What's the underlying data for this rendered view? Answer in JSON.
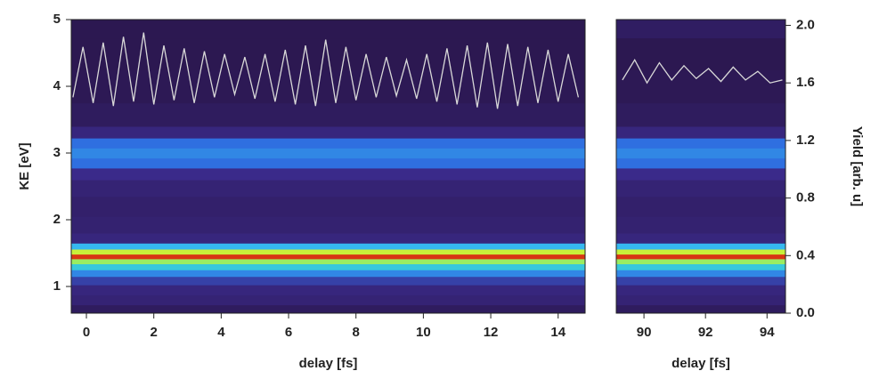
{
  "chart_data": [
    {
      "type": "heatmap",
      "xlabel": "delay [fs]",
      "ylabel": "KE [eV]",
      "xlim": [
        -0.45,
        14.8
      ],
      "xticks": [
        0,
        2,
        4,
        6,
        8,
        10,
        12,
        14
      ],
      "ylim": [
        0.6,
        5
      ],
      "yticks": [
        1,
        2,
        3,
        4,
        5
      ],
      "y2lim": [
        0,
        2.04
      ],
      "heatmap": {
        "ke": [
          0.65,
          0.8,
          0.95,
          1.1,
          1.2,
          1.3,
          1.38,
          1.45,
          1.52,
          1.6,
          1.7,
          1.9,
          2.2,
          2.5,
          2.7,
          2.85,
          3.0,
          3.15,
          3.3,
          3.5,
          4.0,
          4.5,
          4.95
        ],
        "intensity": [
          0.05,
          0.1,
          0.12,
          0.2,
          0.35,
          0.5,
          0.7,
          0.98,
          0.75,
          0.45,
          0.12,
          0.09,
          0.08,
          0.1,
          0.15,
          0.3,
          0.35,
          0.3,
          0.12,
          0.05,
          0.03,
          0.02,
          0.02
        ]
      },
      "series": [
        {
          "color": "#d8d8d8",
          "axis": "y2",
          "x": [
            -0.4,
            -0.1,
            0.2,
            0.5,
            0.8,
            1.1,
            1.4,
            1.7,
            2.0,
            2.3,
            2.6,
            2.9,
            3.2,
            3.5,
            3.8,
            4.1,
            4.4,
            4.7,
            5.0,
            5.3,
            5.6,
            5.9,
            6.2,
            6.5,
            6.8,
            7.1,
            7.4,
            7.7,
            8.0,
            8.3,
            8.6,
            8.9,
            9.2,
            9.5,
            9.8,
            10.1,
            10.4,
            10.7,
            11.0,
            11.3,
            11.6,
            11.9,
            12.2,
            12.5,
            12.8,
            13.1,
            13.4,
            13.7,
            14.0,
            14.3,
            14.6
          ],
          "values": [
            1.5,
            1.85,
            1.46,
            1.88,
            1.44,
            1.92,
            1.47,
            1.95,
            1.45,
            1.86,
            1.48,
            1.84,
            1.46,
            1.82,
            1.5,
            1.8,
            1.52,
            1.78,
            1.49,
            1.8,
            1.47,
            1.83,
            1.45,
            1.86,
            1.44,
            1.9,
            1.46,
            1.85,
            1.48,
            1.8,
            1.5,
            1.78,
            1.51,
            1.76,
            1.49,
            1.8,
            1.47,
            1.84,
            1.45,
            1.86,
            1.43,
            1.88,
            1.42,
            1.87,
            1.44,
            1.85,
            1.46,
            1.83,
            1.47,
            1.8,
            1.5
          ]
        }
      ]
    },
    {
      "type": "heatmap",
      "xlabel": "delay [fs]",
      "y2label": "Yield [arb. u]",
      "xlim": [
        89.1,
        94.6
      ],
      "xticks": [
        90,
        92,
        94
      ],
      "ylim": [
        0.6,
        5
      ],
      "y2lim": [
        0,
        2.04
      ],
      "y2ticks": [
        {
          "value": 0,
          "label": "0.0"
        },
        0.4,
        0.8,
        1.2,
        1.6,
        {
          "value": 2,
          "label": "2.0"
        }
      ],
      "heatmap": {
        "ke": [
          0.65,
          0.8,
          0.95,
          1.1,
          1.2,
          1.3,
          1.38,
          1.45,
          1.52,
          1.6,
          1.7,
          1.9,
          2.2,
          2.5,
          2.7,
          2.85,
          3.0,
          3.15,
          3.3,
          3.5,
          4.0,
          4.5,
          4.95
        ],
        "intensity": [
          0.05,
          0.1,
          0.12,
          0.2,
          0.35,
          0.5,
          0.7,
          0.98,
          0.75,
          0.45,
          0.12,
          0.09,
          0.08,
          0.1,
          0.15,
          0.3,
          0.35,
          0.3,
          0.12,
          0.05,
          0.03,
          0.02,
          0.06
        ]
      },
      "series": [
        {
          "color": "#d8d8d8",
          "axis": "y2",
          "x": [
            89.3,
            89.7,
            90.1,
            90.5,
            90.9,
            91.3,
            91.7,
            92.1,
            92.5,
            92.9,
            93.3,
            93.7,
            94.1,
            94.5
          ],
          "values": [
            1.62,
            1.76,
            1.6,
            1.74,
            1.62,
            1.72,
            1.63,
            1.7,
            1.61,
            1.71,
            1.62,
            1.68,
            1.6,
            1.62
          ]
        }
      ]
    }
  ]
}
